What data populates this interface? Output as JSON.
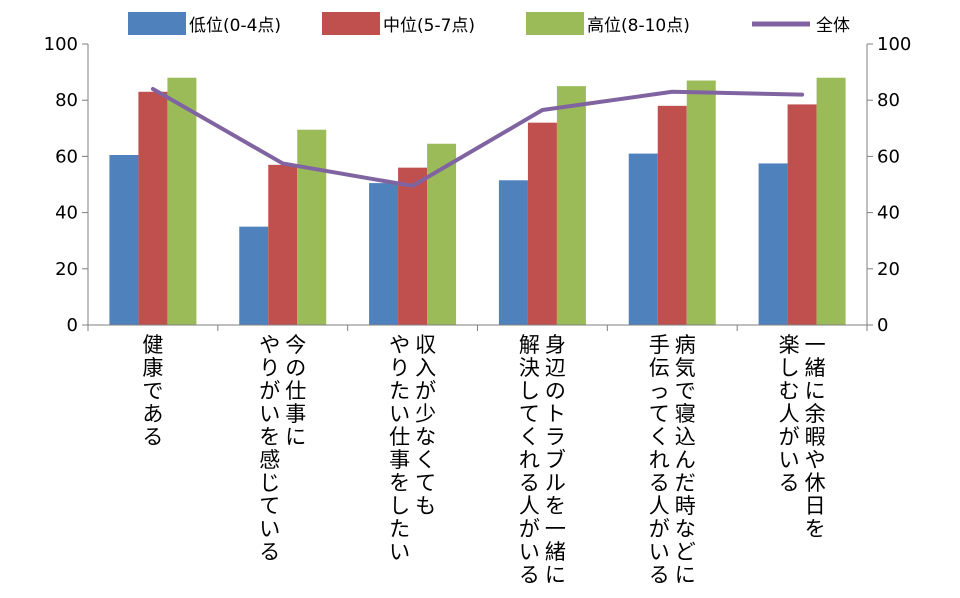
{
  "chart_data": {
    "type": "bar",
    "categories": [
      [
        "健康である"
      ],
      [
        "今の仕事に",
        "やりがいを感じている"
      ],
      [
        "収入が少なくても",
        "やりたい仕事をしたい"
      ],
      [
        "身辺のトラブルを一緒に",
        "解決してくれる人がいる"
      ],
      [
        "病気で寝込んだ時などに",
        "手伝ってくれる人がいる"
      ],
      [
        "一緒に余暇や休日を",
        "楽しむ人がいる"
      ]
    ],
    "series": [
      {
        "name": "低位(0-4点)",
        "type": "bar",
        "color": "#4f81bd",
        "values": [
          60.5,
          35,
          50.5,
          51.5,
          61,
          57.5
        ]
      },
      {
        "name": "中位(5-7点)",
        "type": "bar",
        "color": "#c0504d",
        "values": [
          83,
          57,
          56,
          72,
          78,
          78.5
        ]
      },
      {
        "name": "高位(8-10点)",
        "type": "bar",
        "color": "#9bbb59",
        "values": [
          88,
          69.5,
          64.5,
          85,
          87,
          88
        ]
      },
      {
        "name": "全体",
        "type": "line",
        "color": "#8064a2",
        "values": [
          84,
          57.5,
          49.5,
          76.5,
          83,
          82
        ]
      }
    ],
    "ylim": [
      0,
      100
    ],
    "yticks": [
      0,
      20,
      40,
      60,
      80,
      100
    ],
    "y2lim": [
      0,
      100
    ],
    "y2ticks": [
      0,
      20,
      40,
      60,
      80,
      100
    ],
    "legend_position": "top",
    "grid": false
  }
}
